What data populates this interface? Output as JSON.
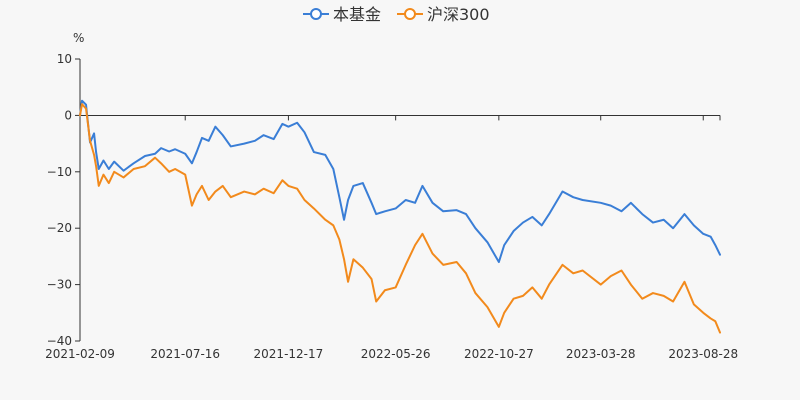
{
  "chart_data": {
    "type": "line",
    "ylabel": "%",
    "ylim": [
      -40,
      10
    ],
    "yticks": [
      10,
      0,
      -10,
      -20,
      -30,
      -40
    ],
    "x_tick_labels": [
      "2021-02-09",
      "2021-07-16",
      "2021-12-17",
      "2022-05-26",
      "2022-10-27",
      "2023-03-28",
      "2023-08-28"
    ],
    "x_range": [
      "2021-02-09",
      "2023-09-22"
    ],
    "legend_position": "top-center",
    "grid": false,
    "series": [
      {
        "name": "本基金",
        "color": "#3a7ed6",
        "points": [
          [
            "2021-02-09",
            0
          ],
          [
            "2021-02-12",
            2.6
          ],
          [
            "2021-02-18",
            1.9
          ],
          [
            "2021-02-24",
            -4.8
          ],
          [
            "2021-03-02",
            -3.2
          ],
          [
            "2021-03-05",
            -6.5
          ],
          [
            "2021-03-09",
            -9.5
          ],
          [
            "2021-03-16",
            -8.0
          ],
          [
            "2021-03-24",
            -9.5
          ],
          [
            "2021-04-01",
            -8.2
          ],
          [
            "2021-04-15",
            -9.8
          ],
          [
            "2021-04-30",
            -8.5
          ],
          [
            "2021-05-17",
            -7.2
          ],
          [
            "2021-06-01",
            -6.8
          ],
          [
            "2021-06-10",
            -5.8
          ],
          [
            "2021-06-22",
            -6.4
          ],
          [
            "2021-07-01",
            -6.0
          ],
          [
            "2021-07-16",
            -6.8
          ],
          [
            "2021-07-26",
            -8.5
          ],
          [
            "2021-08-02",
            -6.5
          ],
          [
            "2021-08-10",
            -4.0
          ],
          [
            "2021-08-20",
            -4.5
          ],
          [
            "2021-08-30",
            -2.0
          ],
          [
            "2021-09-10",
            -3.5
          ],
          [
            "2021-09-22",
            -5.5
          ],
          [
            "2021-10-12",
            -5.0
          ],
          [
            "2021-10-28",
            -4.5
          ],
          [
            "2021-11-10",
            -3.5
          ],
          [
            "2021-11-25",
            -4.2
          ],
          [
            "2021-12-08",
            -1.5
          ],
          [
            "2021-12-17",
            -2.0
          ],
          [
            "2021-12-30",
            -1.3
          ],
          [
            "2022-01-10",
            -3.0
          ],
          [
            "2022-01-24",
            -6.5
          ],
          [
            "2022-02-10",
            -7.0
          ],
          [
            "2022-02-22",
            -9.5
          ],
          [
            "2022-03-03",
            -14.5
          ],
          [
            "2022-03-10",
            -18.5
          ],
          [
            "2022-03-16",
            -15.0
          ],
          [
            "2022-03-24",
            -12.5
          ],
          [
            "2022-04-07",
            -12.0
          ],
          [
            "2022-04-20",
            -15.5
          ],
          [
            "2022-04-27",
            -17.5
          ],
          [
            "2022-05-10",
            -17.0
          ],
          [
            "2022-05-26",
            -16.5
          ],
          [
            "2022-06-10",
            -15.0
          ],
          [
            "2022-06-24",
            -15.5
          ],
          [
            "2022-07-05",
            -12.5
          ],
          [
            "2022-07-20",
            -15.5
          ],
          [
            "2022-08-05",
            -17.0
          ],
          [
            "2022-08-25",
            -16.8
          ],
          [
            "2022-09-08",
            -17.5
          ],
          [
            "2022-09-22",
            -20.0
          ],
          [
            "2022-10-10",
            -22.5
          ],
          [
            "2022-10-27",
            -26.0
          ],
          [
            "2022-11-04",
            -23.0
          ],
          [
            "2022-11-18",
            -20.5
          ],
          [
            "2022-12-02",
            -19.0
          ],
          [
            "2022-12-16",
            -18.0
          ],
          [
            "2022-12-30",
            -19.5
          ],
          [
            "2023-01-10",
            -17.5
          ],
          [
            "2023-01-30",
            -13.5
          ],
          [
            "2023-02-15",
            -14.5
          ],
          [
            "2023-03-01",
            -15.0
          ],
          [
            "2023-03-28",
            -15.5
          ],
          [
            "2023-04-12",
            -16.0
          ],
          [
            "2023-04-28",
            -17.0
          ],
          [
            "2023-05-12",
            -15.5
          ],
          [
            "2023-05-29",
            -17.5
          ],
          [
            "2023-06-14",
            -19.0
          ],
          [
            "2023-06-30",
            -18.5
          ],
          [
            "2023-07-14",
            -20.0
          ],
          [
            "2023-07-31",
            -17.5
          ],
          [
            "2023-08-14",
            -19.5
          ],
          [
            "2023-08-28",
            -21.0
          ],
          [
            "2023-09-08",
            -21.5
          ],
          [
            "2023-09-15",
            -23.0
          ],
          [
            "2023-09-22",
            -24.7
          ]
        ]
      },
      {
        "name": "沪深300",
        "color": "#f28a1c",
        "points": [
          [
            "2021-02-09",
            0
          ],
          [
            "2021-02-12",
            2.0
          ],
          [
            "2021-02-18",
            1.2
          ],
          [
            "2021-02-24",
            -4.5
          ],
          [
            "2021-03-02",
            -7.0
          ],
          [
            "2021-03-05",
            -9.0
          ],
          [
            "2021-03-09",
            -12.5
          ],
          [
            "2021-03-16",
            -10.5
          ],
          [
            "2021-03-24",
            -12.0
          ],
          [
            "2021-04-01",
            -10.0
          ],
          [
            "2021-04-15",
            -11.0
          ],
          [
            "2021-04-30",
            -9.5
          ],
          [
            "2021-05-17",
            -9.0
          ],
          [
            "2021-06-01",
            -7.5
          ],
          [
            "2021-06-10",
            -8.5
          ],
          [
            "2021-06-22",
            -10.0
          ],
          [
            "2021-07-01",
            -9.5
          ],
          [
            "2021-07-16",
            -10.5
          ],
          [
            "2021-07-26",
            -16.0
          ],
          [
            "2021-08-02",
            -14.0
          ],
          [
            "2021-08-10",
            -12.5
          ],
          [
            "2021-08-20",
            -15.0
          ],
          [
            "2021-08-30",
            -13.5
          ],
          [
            "2021-09-10",
            -12.5
          ],
          [
            "2021-09-22",
            -14.5
          ],
          [
            "2021-10-12",
            -13.5
          ],
          [
            "2021-10-28",
            -14.0
          ],
          [
            "2021-11-10",
            -13.0
          ],
          [
            "2021-11-25",
            -13.8
          ],
          [
            "2021-12-08",
            -11.5
          ],
          [
            "2021-12-17",
            -12.5
          ],
          [
            "2021-12-30",
            -13.0
          ],
          [
            "2022-01-10",
            -15.0
          ],
          [
            "2022-01-24",
            -16.5
          ],
          [
            "2022-02-10",
            -18.5
          ],
          [
            "2022-02-22",
            -19.5
          ],
          [
            "2022-03-03",
            -22.0
          ],
          [
            "2022-03-10",
            -25.5
          ],
          [
            "2022-03-16",
            -29.5
          ],
          [
            "2022-03-24",
            -25.5
          ],
          [
            "2022-04-07",
            -27.0
          ],
          [
            "2022-04-20",
            -29.0
          ],
          [
            "2022-04-27",
            -33.0
          ],
          [
            "2022-05-10",
            -31.0
          ],
          [
            "2022-05-26",
            -30.5
          ],
          [
            "2022-06-10",
            -26.5
          ],
          [
            "2022-06-24",
            -23.0
          ],
          [
            "2022-07-05",
            -21.0
          ],
          [
            "2022-07-20",
            -24.5
          ],
          [
            "2022-08-05",
            -26.5
          ],
          [
            "2022-08-25",
            -26.0
          ],
          [
            "2022-09-08",
            -28.0
          ],
          [
            "2022-09-22",
            -31.5
          ],
          [
            "2022-10-10",
            -34.0
          ],
          [
            "2022-10-27",
            -37.5
          ],
          [
            "2022-11-04",
            -35.0
          ],
          [
            "2022-11-18",
            -32.5
          ],
          [
            "2022-12-02",
            -32.0
          ],
          [
            "2022-12-16",
            -30.5
          ],
          [
            "2022-12-30",
            -32.5
          ],
          [
            "2023-01-10",
            -30.0
          ],
          [
            "2023-01-30",
            -26.5
          ],
          [
            "2023-02-15",
            -28.0
          ],
          [
            "2023-03-01",
            -27.5
          ],
          [
            "2023-03-28",
            -30.0
          ],
          [
            "2023-04-12",
            -28.5
          ],
          [
            "2023-04-28",
            -27.5
          ],
          [
            "2023-05-12",
            -30.0
          ],
          [
            "2023-05-29",
            -32.5
          ],
          [
            "2023-06-14",
            -31.5
          ],
          [
            "2023-06-30",
            -32.0
          ],
          [
            "2023-07-14",
            -33.0
          ],
          [
            "2023-07-31",
            -29.5
          ],
          [
            "2023-08-14",
            -33.5
          ],
          [
            "2023-08-28",
            -35.0
          ],
          [
            "2023-09-08",
            -36.0
          ],
          [
            "2023-09-15",
            -36.5
          ],
          [
            "2023-09-22",
            -38.5
          ]
        ]
      }
    ]
  }
}
